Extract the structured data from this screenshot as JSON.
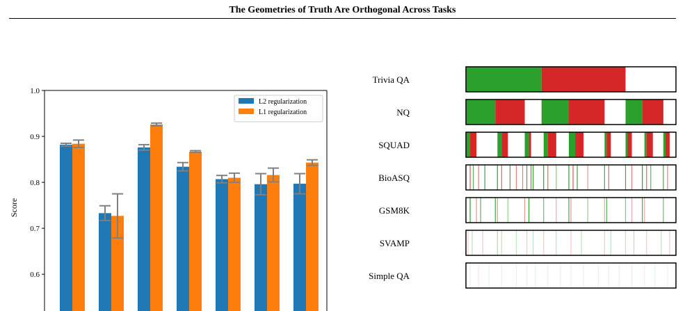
{
  "figure": {
    "title": "The Geometries of Truth Are Orthogonal Across Tasks"
  },
  "colors": {
    "l2": "#1f77b4",
    "l1": "#ff7f0e",
    "errorbar": "#808080",
    "green": "#2ca02c",
    "red": "#d62728"
  },
  "chart_data": [
    {
      "type": "bar",
      "title": "",
      "xlabel": "",
      "ylabel": "Score",
      "ylim": [
        0.52,
        1.0
      ],
      "yticks": [
        "1.0",
        "0.9",
        "0.8",
        "0.7",
        "0.6"
      ],
      "legend_placement": "top-right",
      "categories": [
        "",
        "",
        "",
        "",
        "",
        "",
        ""
      ],
      "series": [
        {
          "name": "L2 regularization",
          "values": [
            0.882,
            0.733,
            0.876,
            0.834,
            0.807,
            0.796,
            0.797
          ],
          "errors": [
            0.003,
            0.016,
            0.006,
            0.009,
            0.008,
            0.023,
            0.022
          ]
        },
        {
          "name": "L1 regularization",
          "values": [
            0.884,
            0.727,
            0.926,
            0.867,
            0.81,
            0.816,
            0.843
          ],
          "errors": [
            0.008,
            0.048,
            0.003,
            0.002,
            0.01,
            0.015,
            0.006
          ]
        }
      ]
    },
    {
      "type": "heatmap",
      "title": "",
      "rows": [
        {
          "label": "Trivia QA",
          "segments": [
            [
              0.0,
              0.36,
              "green"
            ],
            [
              0.36,
              0.76,
              "red"
            ]
          ]
        },
        {
          "label": "NQ",
          "segments": [
            [
              0.0,
              0.14,
              "green"
            ],
            [
              0.14,
              0.28,
              "red"
            ],
            [
              0.36,
              0.49,
              "green"
            ],
            [
              0.49,
              0.66,
              "red"
            ],
            [
              0.76,
              0.84,
              "green"
            ],
            [
              0.84,
              0.94,
              "red"
            ]
          ]
        },
        {
          "label": "SQUAD",
          "segments": [
            [
              0.0,
              0.02,
              "green"
            ],
            [
              0.02,
              0.05,
              "red"
            ],
            [
              0.15,
              0.17,
              "green"
            ],
            [
              0.17,
              0.2,
              "red"
            ],
            [
              0.28,
              0.3,
              "green"
            ],
            [
              0.3,
              0.31,
              "red"
            ],
            [
              0.37,
              0.39,
              "green"
            ],
            [
              0.39,
              0.43,
              "red"
            ],
            [
              0.49,
              0.52,
              "green"
            ],
            [
              0.52,
              0.56,
              "red"
            ],
            [
              0.66,
              0.67,
              "green"
            ],
            [
              0.67,
              0.69,
              "red"
            ],
            [
              0.76,
              0.77,
              "green"
            ],
            [
              0.77,
              0.79,
              "red"
            ],
            [
              0.85,
              0.86,
              "green"
            ],
            [
              0.86,
              0.89,
              "red"
            ],
            [
              0.94,
              0.95,
              "green"
            ],
            [
              0.95,
              0.97,
              "red"
            ]
          ]
        },
        {
          "label": "BioASQ",
          "lines": [
            [
              0.02,
              "red",
              0.8
            ],
            [
              0.035,
              "green",
              0.8
            ],
            [
              0.06,
              "red",
              0.6
            ],
            [
              0.09,
              "green",
              0.9
            ],
            [
              0.15,
              "green",
              1.0
            ],
            [
              0.17,
              "red",
              0.7
            ],
            [
              0.21,
              "green",
              0.9
            ],
            [
              0.24,
              "red",
              0.6
            ],
            [
              0.27,
              "red",
              0.6
            ],
            [
              0.29,
              "green",
              0.9
            ],
            [
              0.31,
              "red",
              0.8
            ],
            [
              0.32,
              "green",
              1.0
            ],
            [
              0.37,
              "green",
              1.0
            ],
            [
              0.39,
              "red",
              0.7
            ],
            [
              0.43,
              "green",
              0.6
            ],
            [
              0.49,
              "green",
              1.0
            ],
            [
              0.51,
              "red",
              0.8
            ],
            [
              0.53,
              "green",
              0.9
            ],
            [
              0.58,
              "red",
              0.5
            ],
            [
              0.66,
              "green",
              0.9
            ],
            [
              0.68,
              "red",
              0.7
            ],
            [
              0.76,
              "green",
              0.9
            ],
            [
              0.79,
              "red",
              0.6
            ],
            [
              0.84,
              "green",
              1.0
            ],
            [
              0.86,
              "red",
              0.7
            ],
            [
              0.88,
              "green",
              0.8
            ],
            [
              0.94,
              "green",
              0.9
            ],
            [
              0.96,
              "red",
              0.6
            ]
          ]
        },
        {
          "label": "GSM8K",
          "lines": [
            [
              0.02,
              "green",
              1.0
            ],
            [
              0.05,
              "red",
              0.5
            ],
            [
              0.07,
              "green",
              0.8
            ],
            [
              0.14,
              "green",
              0.9
            ],
            [
              0.15,
              "red",
              0.5
            ],
            [
              0.2,
              "green",
              0.5
            ],
            [
              0.28,
              "red",
              0.5
            ],
            [
              0.3,
              "green",
              1.0
            ],
            [
              0.37,
              "green",
              0.7
            ],
            [
              0.43,
              "red",
              0.4
            ],
            [
              0.49,
              "green",
              0.9
            ],
            [
              0.5,
              "red",
              0.5
            ],
            [
              0.58,
              "green",
              0.5
            ],
            [
              0.66,
              "red",
              0.4
            ],
            [
              0.67,
              "green",
              0.8
            ],
            [
              0.76,
              "green",
              0.6
            ],
            [
              0.79,
              "red",
              0.4
            ],
            [
              0.84,
              "green",
              0.9
            ],
            [
              0.85,
              "red",
              0.4
            ],
            [
              0.94,
              "green",
              0.7
            ]
          ]
        },
        {
          "label": "SVAMP",
          "lines": [
            [
              0.01,
              "red",
              0.25
            ],
            [
              0.03,
              "green",
              0.3
            ],
            [
              0.08,
              "red",
              0.25
            ],
            [
              0.15,
              "green",
              0.4
            ],
            [
              0.17,
              "red",
              0.25
            ],
            [
              0.24,
              "green",
              0.3
            ],
            [
              0.29,
              "red",
              0.25
            ],
            [
              0.32,
              "green",
              0.3
            ],
            [
              0.37,
              "red",
              0.25
            ],
            [
              0.43,
              "green",
              0.3
            ],
            [
              0.5,
              "red",
              0.25
            ],
            [
              0.55,
              "green",
              0.3
            ],
            [
              0.66,
              "red",
              0.25
            ],
            [
              0.69,
              "green",
              0.3
            ],
            [
              0.76,
              "red",
              0.25
            ],
            [
              0.8,
              "green",
              0.3
            ],
            [
              0.86,
              "red",
              0.25
            ],
            [
              0.93,
              "green",
              0.3
            ],
            [
              0.97,
              "red",
              0.25
            ]
          ]
        },
        {
          "label": "Simple QA",
          "lines": [
            [
              0.02,
              "green",
              0.12
            ],
            [
              0.06,
              "red",
              0.1
            ],
            [
              0.11,
              "green",
              0.12
            ],
            [
              0.17,
              "red",
              0.1
            ],
            [
              0.24,
              "green",
              0.12
            ],
            [
              0.29,
              "red",
              0.1
            ],
            [
              0.33,
              "green",
              0.12
            ],
            [
              0.39,
              "red",
              0.1
            ],
            [
              0.45,
              "green",
              0.12
            ],
            [
              0.5,
              "red",
              0.1
            ],
            [
              0.56,
              "green",
              0.12
            ],
            [
              0.63,
              "red",
              0.1
            ],
            [
              0.68,
              "green",
              0.12
            ],
            [
              0.73,
              "red",
              0.1
            ],
            [
              0.79,
              "green",
              0.12
            ],
            [
              0.85,
              "red",
              0.1
            ],
            [
              0.9,
              "green",
              0.12
            ],
            [
              0.96,
              "red",
              0.1
            ]
          ]
        }
      ]
    }
  ]
}
